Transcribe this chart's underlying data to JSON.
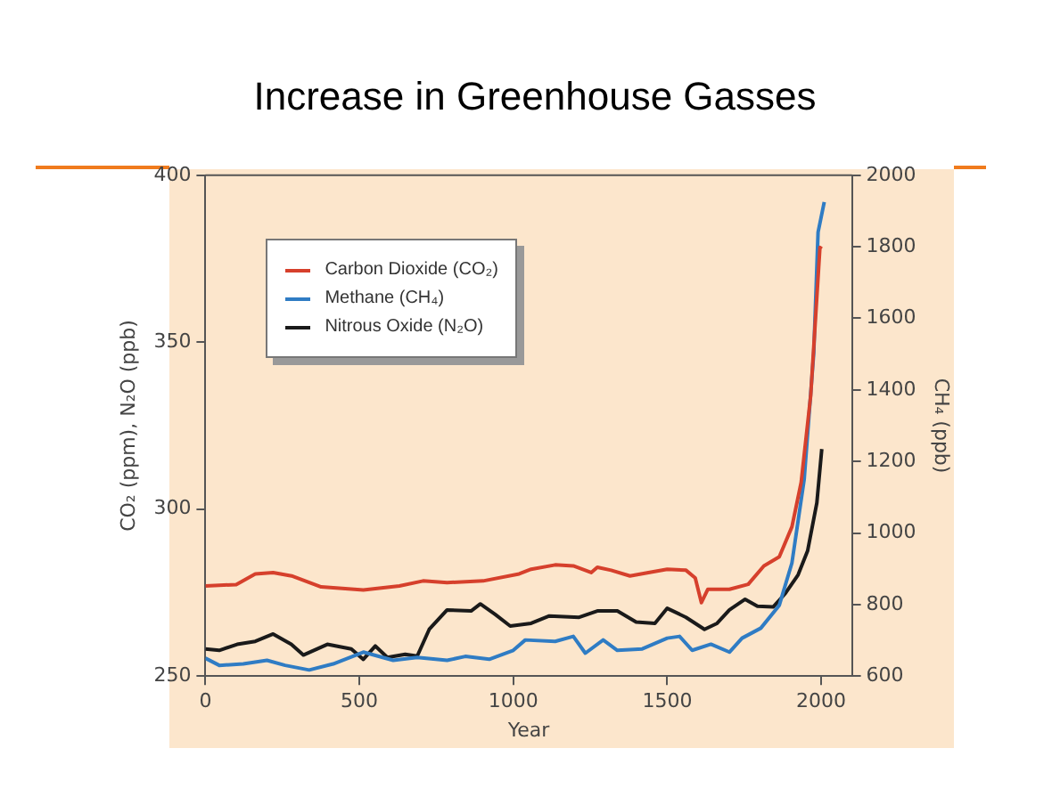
{
  "chart_data": {
    "type": "line",
    "title": "Increase in Greenhouse Gasses",
    "xlabel": "Year",
    "ylabel": "CO₂ (ppm), N₂O (ppb)",
    "y2label": "CH₄ (ppb)",
    "xlim": [
      0,
      2100
    ],
    "xticks": [
      0,
      500,
      1000,
      1500,
      2000
    ],
    "ylim": [
      250,
      400
    ],
    "yticks": [
      250,
      300,
      350,
      400
    ],
    "y2lim": [
      600,
      2000
    ],
    "y2ticks": [
      600,
      800,
      1000,
      1200,
      1400,
      1600,
      1800,
      2000
    ],
    "legend": "top left",
    "grid": false,
    "marker": "none",
    "line_style": "solid",
    "series": [
      {
        "name": "Carbon Dioxide (CO₂)",
        "color": "#d6402c",
        "x": [
          0,
          100,
          162,
          220,
          280,
          376,
          513,
          630,
          707,
          785,
          902,
          1019,
          1058,
          1136,
          1195,
          1253,
          1273,
          1318,
          1379,
          1439,
          1500,
          1561,
          1591,
          1611,
          1632,
          1702,
          1763,
          1814,
          1864,
          1905,
          1935,
          1966,
          1996,
          2002
        ],
        "values": [
          277,
          277.4,
          280.6,
          281,
          280,
          276.7,
          275.8,
          277,
          278.5,
          278,
          278.5,
          280.6,
          282,
          283.3,
          283,
          281,
          282.6,
          281.7,
          280,
          281,
          282,
          281.7,
          279.4,
          272,
          276,
          276,
          277.5,
          283,
          285.7,
          294.7,
          308,
          334,
          378.4,
          378
        ]
      },
      {
        "name": "Methane (CH₄)",
        "color": "#2f7cc4",
        "axis": "y2",
        "x": [
          0,
          45,
          123,
          200,
          259,
          337,
          415,
          513,
          610,
          688,
          785,
          844,
          922,
          1000,
          1039,
          1136,
          1195,
          1234,
          1292,
          1338,
          1419,
          1500,
          1540,
          1581,
          1642,
          1702,
          1743,
          1804,
          1864,
          1905,
          1945,
          1976,
          1990,
          2010
        ],
        "values": [
          650,
          630,
          634,
          644,
          630,
          617,
          634,
          667,
          644,
          652,
          644,
          655,
          647,
          672,
          701,
          697,
          711,
          664,
          701,
          672,
          676,
          706,
          711,
          672,
          689,
          667,
          706,
          734,
          798,
          916,
          1151,
          1504,
          1841,
          1925
        ]
      },
      {
        "name": "Nitrous Oxide (N₂O)",
        "color": "#1a1a1a",
        "x": [
          0,
          45,
          103,
          162,
          220,
          279,
          318,
          396,
          474,
          513,
          552,
          591,
          649,
          688,
          727,
          785,
          863,
          893,
          941,
          990,
          1058,
          1117,
          1214,
          1273,
          1338,
          1399,
          1460,
          1500,
          1561,
          1621,
          1662,
          1702,
          1753,
          1793,
          1844,
          1884,
          1925,
          1956,
          1986,
          2002
        ],
        "values": [
          258.1,
          257.7,
          259.5,
          260.4,
          262.6,
          259.5,
          256.3,
          259.5,
          258.1,
          255,
          259,
          255.6,
          256.5,
          256,
          264,
          269.8,
          269.5,
          271.6,
          268.5,
          265,
          265.8,
          268,
          267.6,
          269.5,
          269.5,
          266.2,
          265.8,
          270.3,
          267.6,
          264,
          265.8,
          269.8,
          273,
          270.9,
          270.7,
          274.8,
          280.3,
          287.5,
          301.9,
          318
        ]
      }
    ]
  }
}
